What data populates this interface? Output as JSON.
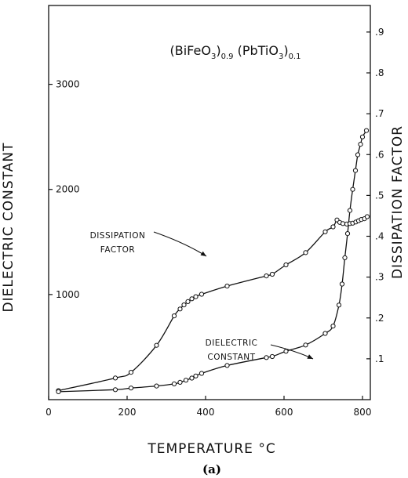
{
  "chart_data": {
    "type": "line",
    "title": {
      "parts": [
        {
          "text": "(BiFeO",
          "sub": false
        },
        {
          "text": "3",
          "sub": true
        },
        {
          "text": ")",
          "sub": false
        },
        {
          "text": "0.9",
          "sub": true
        },
        {
          "text": " (PbTiO",
          "sub": false
        },
        {
          "text": "3",
          "sub": true
        },
        {
          "text": ")",
          "sub": false
        },
        {
          "text": "0.1",
          "sub": true
        }
      ]
    },
    "xlabel": "TEMPERATURE °C",
    "ylabel_left": "DIELECTRIC CONSTANT",
    "ylabel_right": "DISSIPATION FACTOR",
    "caption": "(a)",
    "xlim": [
      0,
      820
    ],
    "xticks": [
      0,
      200,
      400,
      600,
      800
    ],
    "ylim_left": [
      0,
      3750
    ],
    "yticks_left": [
      1000,
      2000,
      3000
    ],
    "ylim_right": [
      0,
      0.965
    ],
    "yticks_right": [
      {
        "value": 0.1,
        "label": ".1"
      },
      {
        "value": 0.2,
        "label": ".2"
      },
      {
        "value": 0.3,
        "label": ".3"
      },
      {
        "value": 0.4,
        "label": ".4"
      },
      {
        "value": 0.5,
        "label": ".5"
      },
      {
        "value": 0.6,
        "label": ".6"
      },
      {
        "value": 0.7,
        "label": ".7"
      },
      {
        "value": 0.8,
        "label": ".8"
      },
      {
        "value": 0.9,
        "label": ".9"
      }
    ],
    "grid": false,
    "series": [
      {
        "name": "DISSIPATION FACTOR",
        "axis": "right",
        "x": [
          25,
          170,
          210,
          275,
          320,
          335,
          345,
          355,
          365,
          375,
          390,
          455,
          555,
          570,
          605,
          655,
          705,
          725,
          735,
          742,
          750,
          760,
          768,
          775,
          783,
          790,
          797,
          805,
          812
        ],
        "y": [
          0.022,
          0.053,
          0.067,
          0.133,
          0.205,
          0.222,
          0.232,
          0.24,
          0.247,
          0.252,
          0.258,
          0.278,
          0.303,
          0.307,
          0.33,
          0.36,
          0.411,
          0.423,
          0.44,
          0.434,
          0.431,
          0.43,
          0.431,
          0.432,
          0.435,
          0.438,
          0.441,
          0.443,
          0.448
        ]
      },
      {
        "name": "DIELECTRIC CONSTANT",
        "axis": "left",
        "x": [
          25,
          170,
          210,
          275,
          320,
          335,
          350,
          365,
          375,
          390,
          455,
          555,
          570,
          605,
          655,
          705,
          725,
          740,
          748,
          755,
          762,
          768,
          775,
          782,
          788,
          795,
          800,
          810
        ],
        "y": [
          75,
          95,
          110,
          130,
          150,
          165,
          185,
          205,
          225,
          250,
          325,
          400,
          410,
          460,
          520,
          630,
          700,
          900,
          1100,
          1350,
          1580,
          1800,
          2000,
          2180,
          2330,
          2430,
          2500,
          2560
        ]
      }
    ],
    "annotations": [
      {
        "lines": [
          "DISSIPATION",
          "FACTOR"
        ],
        "target_series": "DISSIPATION FACTOR"
      },
      {
        "lines": [
          "DIELECTRIC",
          "CONSTANT"
        ],
        "target_series": "DIELECTRIC CONSTANT"
      }
    ]
  }
}
